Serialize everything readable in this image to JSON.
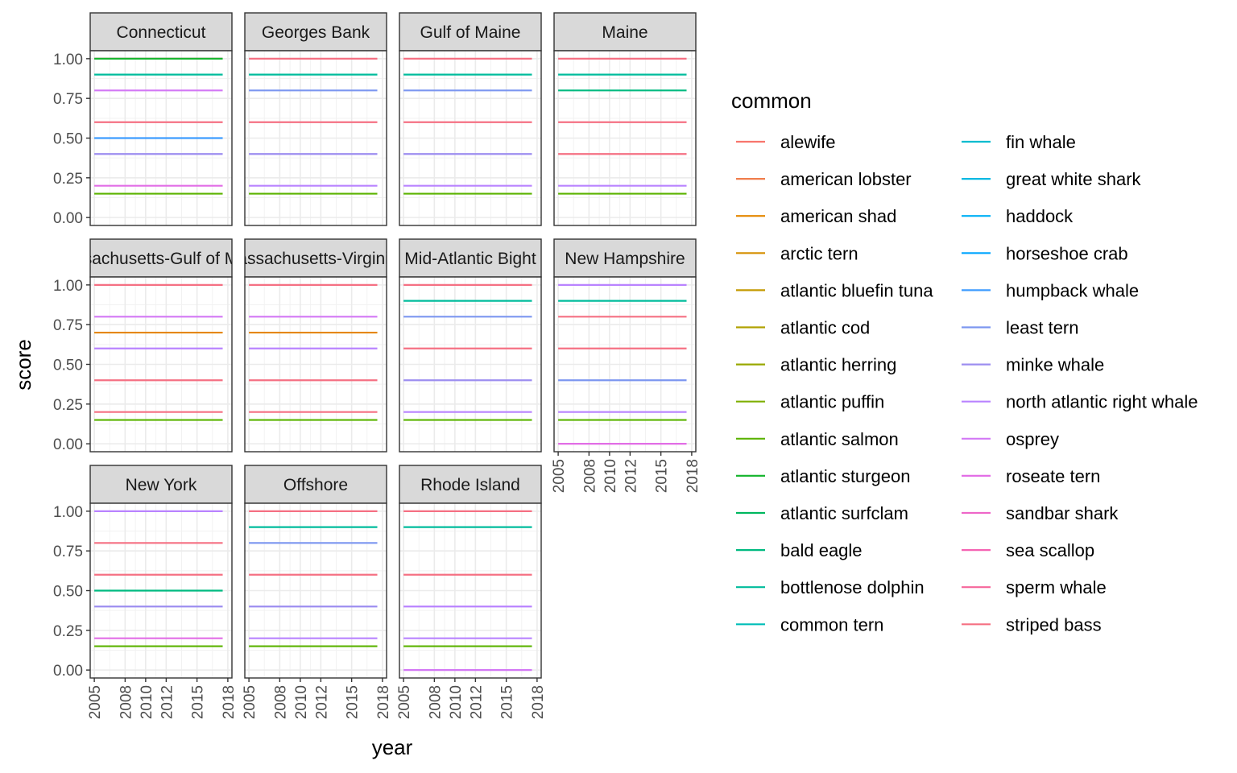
{
  "chart_data": {
    "type": "line",
    "facet_type": "facet_wrap",
    "xlabel": "year",
    "ylabel": "score",
    "xlim": [
      2004.6,
      2018.4
    ],
    "ylim": [
      -0.05,
      1.05
    ],
    "x_ticks": [
      "2005",
      "2008",
      "2010",
      "2012",
      "2015",
      "2018"
    ],
    "x_tick_values": [
      2005,
      2008,
      2010,
      2012,
      2015,
      2018
    ],
    "y_ticks": [
      "0.00",
      "0.25",
      "0.50",
      "0.75",
      "1.00"
    ],
    "y_tick_values": [
      0,
      0.25,
      0.5,
      0.75,
      1.0
    ],
    "x_range": [
      2005,
      2017.5
    ],
    "grid": true,
    "legend": {
      "title": "common",
      "placement": "right",
      "columns": 2,
      "entries": [
        {
          "name": "alewife",
          "color": "#F8766D"
        },
        {
          "name": "american lobster",
          "color": "#F07E4D"
        },
        {
          "name": "american shad",
          "color": "#E58700"
        },
        {
          "name": "arctic tern",
          "color": "#D58F00"
        },
        {
          "name": "atlantic bluefin tuna",
          "color": "#C49A00"
        },
        {
          "name": "atlantic cod",
          "color": "#B0A100"
        },
        {
          "name": "atlantic herring",
          "color": "#99A800"
        },
        {
          "name": "atlantic puffin",
          "color": "#7FAF00"
        },
        {
          "name": "atlantic salmon",
          "color": "#5BB300"
        },
        {
          "name": "atlantic sturgeon",
          "color": "#1AB631"
        },
        {
          "name": "atlantic surfclam",
          "color": "#00B75F"
        },
        {
          "name": "bald eagle",
          "color": "#00BA80"
        },
        {
          "name": "bottlenose dolphin",
          "color": "#00BC9C"
        },
        {
          "name": "common tern",
          "color": "#00BEB8"
        },
        {
          "name": "fin whale",
          "color": "#00BCCF"
        },
        {
          "name": "great white shark",
          "color": "#00B8E2"
        },
        {
          "name": "haddock",
          "color": "#00B0F6"
        },
        {
          "name": "horseshoe crab",
          "color": "#00A5FF"
        },
        {
          "name": "humpback whale",
          "color": "#3D9CFF"
        },
        {
          "name": "least tern",
          "color": "#7C96F0"
        },
        {
          "name": "minke whale",
          "color": "#9D8EF0"
        },
        {
          "name": "north atlantic right whale",
          "color": "#B983FF"
        },
        {
          "name": "osprey",
          "color": "#D378F5"
        },
        {
          "name": "roseate tern",
          "color": "#E26EE6"
        },
        {
          "name": "sandbar shark",
          "color": "#EE67C9"
        },
        {
          "name": "sea scallop",
          "color": "#F564B3"
        },
        {
          "name": "sperm whale",
          "color": "#F6679B"
        },
        {
          "name": "striped bass",
          "color": "#F57083"
        }
      ]
    },
    "facets": [
      {
        "label": "Connecticut",
        "series": [
          {
            "color": "#F57083",
            "y": 1.0
          },
          {
            "color": "#1AB631",
            "y": 1.0
          },
          {
            "color": "#00BC9C",
            "y": 0.9
          },
          {
            "color": "#D378F5",
            "y": 0.8
          },
          {
            "color": "#F57083",
            "y": 0.6
          },
          {
            "color": "#3D9CFF",
            "y": 0.5
          },
          {
            "color": "#9D8EF0",
            "y": 0.4
          },
          {
            "color": "#E26EE6",
            "y": 0.2
          },
          {
            "color": "#5BB300",
            "y": 0.15
          }
        ]
      },
      {
        "label": "Georges Bank",
        "series": [
          {
            "color": "#F57083",
            "y": 1.0
          },
          {
            "color": "#00BC9C",
            "y": 0.9
          },
          {
            "color": "#7C96F0",
            "y": 0.8
          },
          {
            "color": "#F57083",
            "y": 0.6
          },
          {
            "color": "#9D8EF0",
            "y": 0.4
          },
          {
            "color": "#B983FF",
            "y": 0.2
          },
          {
            "color": "#5BB300",
            "y": 0.15
          }
        ]
      },
      {
        "label": "Gulf of Maine",
        "series": [
          {
            "color": "#F57083",
            "y": 1.0
          },
          {
            "color": "#00BC9C",
            "y": 0.9
          },
          {
            "color": "#7C96F0",
            "y": 0.8
          },
          {
            "color": "#F57083",
            "y": 0.6
          },
          {
            "color": "#9D8EF0",
            "y": 0.4
          },
          {
            "color": "#B983FF",
            "y": 0.2
          },
          {
            "color": "#5BB300",
            "y": 0.15
          }
        ]
      },
      {
        "label": "Maine",
        "series": [
          {
            "color": "#F57083",
            "y": 1.0
          },
          {
            "color": "#00BC9C",
            "y": 0.9
          },
          {
            "color": "#00BA80",
            "y": 0.8
          },
          {
            "color": "#F57083",
            "y": 0.6
          },
          {
            "color": "#F57083",
            "y": 0.4
          },
          {
            "color": "#B983FF",
            "y": 0.2
          },
          {
            "color": "#5BB300",
            "y": 0.15
          }
        ]
      },
      {
        "label": "Massachusetts-Gulf of Maine",
        "series": [
          {
            "color": "#F57083",
            "y": 1.0
          },
          {
            "color": "#D378F5",
            "y": 0.8
          },
          {
            "color": "#E58700",
            "y": 0.7
          },
          {
            "color": "#B983FF",
            "y": 0.6
          },
          {
            "color": "#F57083",
            "y": 0.4
          },
          {
            "color": "#F57083",
            "y": 0.2
          },
          {
            "color": "#5BB300",
            "y": 0.15
          }
        ]
      },
      {
        "label": "Massachusetts-Virginian",
        "series": [
          {
            "color": "#F57083",
            "y": 1.0
          },
          {
            "color": "#D378F5",
            "y": 0.8
          },
          {
            "color": "#E58700",
            "y": 0.7
          },
          {
            "color": "#B983FF",
            "y": 0.6
          },
          {
            "color": "#F57083",
            "y": 0.4
          },
          {
            "color": "#F57083",
            "y": 0.2
          },
          {
            "color": "#5BB300",
            "y": 0.15
          }
        ]
      },
      {
        "label": "Mid-Atlantic Bight",
        "series": [
          {
            "color": "#F57083",
            "y": 1.0
          },
          {
            "color": "#00BC9C",
            "y": 0.9
          },
          {
            "color": "#7C96F0",
            "y": 0.8
          },
          {
            "color": "#F57083",
            "y": 0.6
          },
          {
            "color": "#9D8EF0",
            "y": 0.4
          },
          {
            "color": "#B983FF",
            "y": 0.2
          },
          {
            "color": "#5BB300",
            "y": 0.15
          }
        ]
      },
      {
        "label": "New Hampshire",
        "series": [
          {
            "color": "#B983FF",
            "y": 1.0
          },
          {
            "color": "#00BC9C",
            "y": 0.9
          },
          {
            "color": "#F57083",
            "y": 0.8
          },
          {
            "color": "#F57083",
            "y": 0.6
          },
          {
            "color": "#7C96F0",
            "y": 0.4
          },
          {
            "color": "#B983FF",
            "y": 0.2
          },
          {
            "color": "#5BB300",
            "y": 0.15
          },
          {
            "color": "#E26EE6",
            "y": 0.0
          }
        ]
      },
      {
        "label": "New York",
        "series": [
          {
            "color": "#B983FF",
            "y": 1.0
          },
          {
            "color": "#F57083",
            "y": 0.8
          },
          {
            "color": "#F57083",
            "y": 0.6
          },
          {
            "color": "#00BA80",
            "y": 0.5
          },
          {
            "color": "#9D8EF0",
            "y": 0.4
          },
          {
            "color": "#E26EE6",
            "y": 0.2
          },
          {
            "color": "#5BB300",
            "y": 0.15
          }
        ]
      },
      {
        "label": "Offshore",
        "series": [
          {
            "color": "#F57083",
            "y": 1.0
          },
          {
            "color": "#00BC9C",
            "y": 0.9
          },
          {
            "color": "#7C96F0",
            "y": 0.8
          },
          {
            "color": "#F57083",
            "y": 0.6
          },
          {
            "color": "#9D8EF0",
            "y": 0.4
          },
          {
            "color": "#B983FF",
            "y": 0.2
          },
          {
            "color": "#5BB300",
            "y": 0.15
          }
        ]
      },
      {
        "label": "Rhode Island",
        "series": [
          {
            "color": "#F57083",
            "y": 1.0
          },
          {
            "color": "#00BC9C",
            "y": 0.9
          },
          {
            "color": "#F57083",
            "y": 0.6
          },
          {
            "color": "#B983FF",
            "y": 0.4
          },
          {
            "color": "#B983FF",
            "y": 0.2
          },
          {
            "color": "#5BB300",
            "y": 0.15
          },
          {
            "color": "#D378F5",
            "y": 0.0
          }
        ]
      }
    ]
  }
}
